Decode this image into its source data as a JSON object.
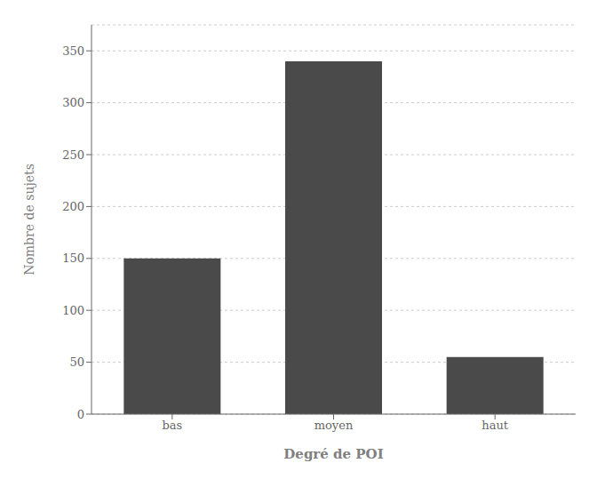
{
  "chart_data": {
    "type": "bar",
    "categories": [
      "bas",
      "moyen",
      "haut"
    ],
    "values": [
      150,
      340,
      55
    ],
    "xlabel": "Degré de POI",
    "ylabel": "Nombre de sujets",
    "ylim": [
      0,
      375
    ],
    "yticks": [
      0,
      50,
      100,
      150,
      200,
      250,
      300,
      350
    ],
    "grid": true,
    "color": "#4a4a4a"
  }
}
